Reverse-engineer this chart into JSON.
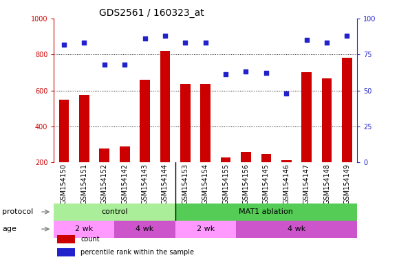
{
  "title": "GDS2561 / 160323_at",
  "samples": [
    "GSM154150",
    "GSM154151",
    "GSM154152",
    "GSM154142",
    "GSM154143",
    "GSM154144",
    "GSM154153",
    "GSM154154",
    "GSM154155",
    "GSM154156",
    "GSM154145",
    "GSM154146",
    "GSM154147",
    "GSM154148",
    "GSM154149"
  ],
  "bar_values": [
    550,
    575,
    278,
    288,
    660,
    818,
    635,
    635,
    228,
    258,
    245,
    213,
    703,
    668,
    783
  ],
  "dot_values": [
    82,
    83,
    68,
    68,
    86,
    88,
    83,
    83,
    61,
    63,
    62,
    48,
    85,
    83,
    88
  ],
  "bar_color": "#cc0000",
  "dot_color": "#2222cc",
  "ylim_left": [
    200,
    1000
  ],
  "ylim_right": [
    0,
    100
  ],
  "yticks_left": [
    200,
    400,
    600,
    800,
    1000
  ],
  "yticks_right": [
    0,
    25,
    50,
    75,
    100
  ],
  "grid_values": [
    400,
    600,
    800
  ],
  "protocol_groups": [
    {
      "label": "control",
      "start": 0,
      "end": 6,
      "color": "#aaee99"
    },
    {
      "label": "MAT1 ablation",
      "start": 6,
      "end": 15,
      "color": "#55cc55"
    }
  ],
  "age_groups": [
    {
      "label": "2 wk",
      "start": 0,
      "end": 3,
      "color": "#ff99ff"
    },
    {
      "label": "4 wk",
      "start": 3,
      "end": 6,
      "color": "#cc55cc"
    },
    {
      "label": "2 wk",
      "start": 6,
      "end": 9,
      "color": "#ff99ff"
    },
    {
      "label": "4 wk",
      "start": 9,
      "end": 15,
      "color": "#cc55cc"
    }
  ],
  "legend_items": [
    {
      "label": "count",
      "color": "#cc0000"
    },
    {
      "label": "percentile rank within the sample",
      "color": "#2222cc"
    }
  ],
  "left_color": "#cc0000",
  "right_color": "#2222cc",
  "xtick_bg": "#cccccc",
  "title_fontsize": 10,
  "tick_fontsize": 7,
  "label_fontsize": 8,
  "row_label_fontsize": 8
}
